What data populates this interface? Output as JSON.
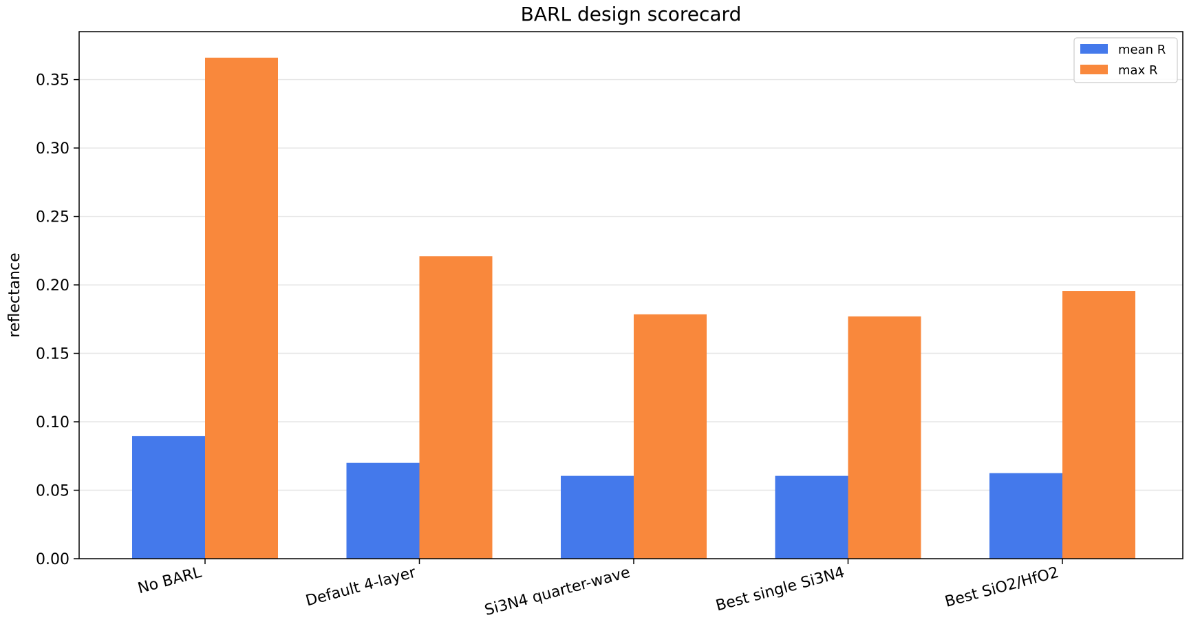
{
  "chart_data": {
    "type": "bar",
    "title": "BARL design scorecard",
    "xlabel": "",
    "ylabel": "reflectance",
    "categories": [
      "No BARL",
      "Default 4-layer",
      "Si3N4 quarter-wave",
      "Best single Si3N4",
      "Best SiO2/HfO2"
    ],
    "series": [
      {
        "name": "mean R",
        "color": "#4479eb",
        "values": [
          0.0895,
          0.07,
          0.0605,
          0.0605,
          0.0625
        ]
      },
      {
        "name": "max R",
        "color": "#f9883c",
        "values": [
          0.366,
          0.221,
          0.1785,
          0.177,
          0.1955
        ]
      }
    ],
    "ylim": [
      0,
      0.385
    ],
    "yticks": [
      "0.00",
      "0.05",
      "0.10",
      "0.15",
      "0.20",
      "0.25",
      "0.30",
      "0.35"
    ],
    "grid": "horizontal",
    "legend": "top-right"
  }
}
